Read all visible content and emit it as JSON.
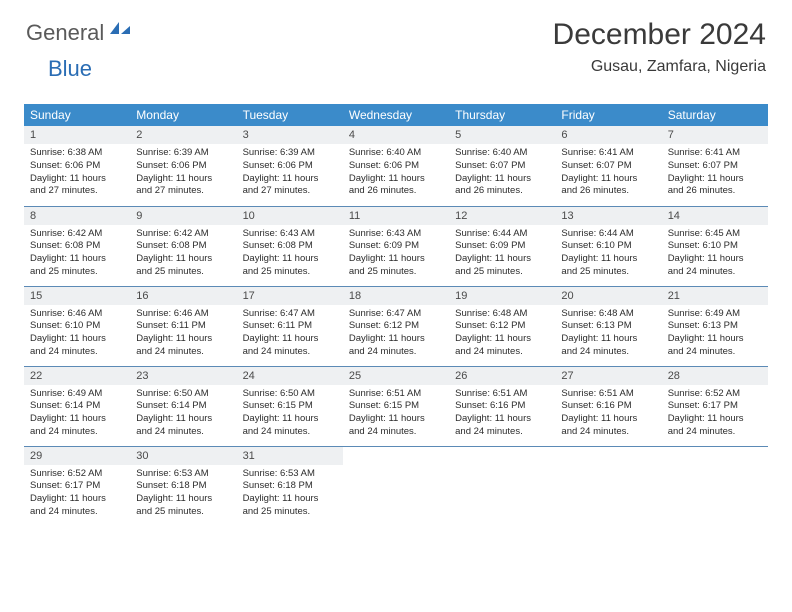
{
  "brand": {
    "part1": "General",
    "part2": "Blue"
  },
  "title": "December 2024",
  "location": "Gusau, Zamfara, Nigeria",
  "colors": {
    "header_bg": "#3b8bca",
    "header_text": "#ffffff",
    "daynum_bg": "#eef0f2",
    "row_border": "#5b8ab6",
    "brand_gray": "#5a5a5a",
    "brand_blue": "#2a6db4",
    "text": "#2c2c2c",
    "background": "#ffffff"
  },
  "typography": {
    "month_title_fontsize": 30,
    "location_fontsize": 16,
    "dayhead_fontsize": 12,
    "daynum_fontsize": 11,
    "cell_fontsize": 9.5,
    "logo_fontsize": 22
  },
  "dayheads": [
    "Sunday",
    "Monday",
    "Tuesday",
    "Wednesday",
    "Thursday",
    "Friday",
    "Saturday"
  ],
  "weeks": [
    [
      {
        "n": "1",
        "sr": "6:38 AM",
        "ss": "6:06 PM",
        "dl": "11 hours and 27 minutes."
      },
      {
        "n": "2",
        "sr": "6:39 AM",
        "ss": "6:06 PM",
        "dl": "11 hours and 27 minutes."
      },
      {
        "n": "3",
        "sr": "6:39 AM",
        "ss": "6:06 PM",
        "dl": "11 hours and 27 minutes."
      },
      {
        "n": "4",
        "sr": "6:40 AM",
        "ss": "6:06 PM",
        "dl": "11 hours and 26 minutes."
      },
      {
        "n": "5",
        "sr": "6:40 AM",
        "ss": "6:07 PM",
        "dl": "11 hours and 26 minutes."
      },
      {
        "n": "6",
        "sr": "6:41 AM",
        "ss": "6:07 PM",
        "dl": "11 hours and 26 minutes."
      },
      {
        "n": "7",
        "sr": "6:41 AM",
        "ss": "6:07 PM",
        "dl": "11 hours and 26 minutes."
      }
    ],
    [
      {
        "n": "8",
        "sr": "6:42 AM",
        "ss": "6:08 PM",
        "dl": "11 hours and 25 minutes."
      },
      {
        "n": "9",
        "sr": "6:42 AM",
        "ss": "6:08 PM",
        "dl": "11 hours and 25 minutes."
      },
      {
        "n": "10",
        "sr": "6:43 AM",
        "ss": "6:08 PM",
        "dl": "11 hours and 25 minutes."
      },
      {
        "n": "11",
        "sr": "6:43 AM",
        "ss": "6:09 PM",
        "dl": "11 hours and 25 minutes."
      },
      {
        "n": "12",
        "sr": "6:44 AM",
        "ss": "6:09 PM",
        "dl": "11 hours and 25 minutes."
      },
      {
        "n": "13",
        "sr": "6:44 AM",
        "ss": "6:10 PM",
        "dl": "11 hours and 25 minutes."
      },
      {
        "n": "14",
        "sr": "6:45 AM",
        "ss": "6:10 PM",
        "dl": "11 hours and 24 minutes."
      }
    ],
    [
      {
        "n": "15",
        "sr": "6:46 AM",
        "ss": "6:10 PM",
        "dl": "11 hours and 24 minutes."
      },
      {
        "n": "16",
        "sr": "6:46 AM",
        "ss": "6:11 PM",
        "dl": "11 hours and 24 minutes."
      },
      {
        "n": "17",
        "sr": "6:47 AM",
        "ss": "6:11 PM",
        "dl": "11 hours and 24 minutes."
      },
      {
        "n": "18",
        "sr": "6:47 AM",
        "ss": "6:12 PM",
        "dl": "11 hours and 24 minutes."
      },
      {
        "n": "19",
        "sr": "6:48 AM",
        "ss": "6:12 PM",
        "dl": "11 hours and 24 minutes."
      },
      {
        "n": "20",
        "sr": "6:48 AM",
        "ss": "6:13 PM",
        "dl": "11 hours and 24 minutes."
      },
      {
        "n": "21",
        "sr": "6:49 AM",
        "ss": "6:13 PM",
        "dl": "11 hours and 24 minutes."
      }
    ],
    [
      {
        "n": "22",
        "sr": "6:49 AM",
        "ss": "6:14 PM",
        "dl": "11 hours and 24 minutes."
      },
      {
        "n": "23",
        "sr": "6:50 AM",
        "ss": "6:14 PM",
        "dl": "11 hours and 24 minutes."
      },
      {
        "n": "24",
        "sr": "6:50 AM",
        "ss": "6:15 PM",
        "dl": "11 hours and 24 minutes."
      },
      {
        "n": "25",
        "sr": "6:51 AM",
        "ss": "6:15 PM",
        "dl": "11 hours and 24 minutes."
      },
      {
        "n": "26",
        "sr": "6:51 AM",
        "ss": "6:16 PM",
        "dl": "11 hours and 24 minutes."
      },
      {
        "n": "27",
        "sr": "6:51 AM",
        "ss": "6:16 PM",
        "dl": "11 hours and 24 minutes."
      },
      {
        "n": "28",
        "sr": "6:52 AM",
        "ss": "6:17 PM",
        "dl": "11 hours and 24 minutes."
      }
    ],
    [
      {
        "n": "29",
        "sr": "6:52 AM",
        "ss": "6:17 PM",
        "dl": "11 hours and 24 minutes."
      },
      {
        "n": "30",
        "sr": "6:53 AM",
        "ss": "6:18 PM",
        "dl": "11 hours and 25 minutes."
      },
      {
        "n": "31",
        "sr": "6:53 AM",
        "ss": "6:18 PM",
        "dl": "11 hours and 25 minutes."
      },
      null,
      null,
      null,
      null
    ]
  ],
  "labels": {
    "sunrise": "Sunrise:",
    "sunset": "Sunset:",
    "daylight": "Daylight:"
  }
}
